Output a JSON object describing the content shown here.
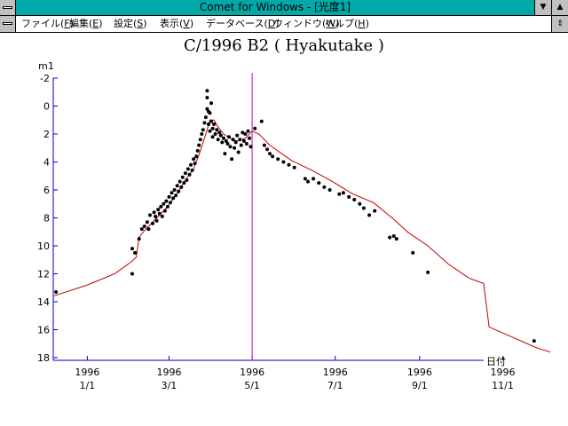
{
  "window": {
    "title": "Comet for Windows - [光度1]",
    "scroll_down_icon": "down-arrow-icon",
    "scroll_up_icon": "up-arrow-icon"
  },
  "menu": {
    "items": [
      {
        "label": "ファイル(",
        "key": "F",
        "suffix": ")"
      },
      {
        "label": "編集(",
        "key": "E",
        "suffix": ")"
      },
      {
        "label": "設定(",
        "key": "S",
        "suffix": ")"
      },
      {
        "label": "表示(",
        "key": "V",
        "suffix": ")"
      },
      {
        "label": "データベース(",
        "key": "D",
        "suffix": ")"
      },
      {
        "label": "ウィンドウ(",
        "key": "W",
        "suffix": ")"
      },
      {
        "label": "ヘルプ(",
        "key": "H",
        "suffix": ")"
      }
    ]
  },
  "chart_data": {
    "type": "scatter",
    "title": "C/1996 B2 ( Hyakutake )",
    "ylabel": "m1",
    "xlabel": "日付",
    "ylim": [
      -2,
      18
    ],
    "y_inverted": true,
    "y_ticks": [
      -2,
      0,
      2,
      4,
      6,
      8,
      10,
      12,
      14,
      16,
      18
    ],
    "x_range_days": [
      -25,
      291
    ],
    "x_ticks": [
      {
        "day": 0,
        "year": "1996",
        "date": "1/1"
      },
      {
        "day": 60,
        "year": "1996",
        "date": "3/1"
      },
      {
        "day": 121,
        "year": "1996",
        "date": "5/1"
      },
      {
        "day": 182,
        "year": "1996",
        "date": "7/1"
      },
      {
        "day": 244,
        "year": "1996",
        "date": "9/1"
      },
      {
        "day": 305,
        "year": "1996",
        "date": "11/1"
      }
    ],
    "marker_day": 121,
    "colors": {
      "axis": "#0000c0",
      "curve": "#c00000",
      "marker": "#c000c0",
      "points": "#000000"
    },
    "curve": [
      [
        -25,
        13.6
      ],
      [
        0,
        12.8
      ],
      [
        20,
        12.0
      ],
      [
        33,
        11.1
      ],
      [
        36,
        10.8
      ],
      [
        38,
        9.4
      ],
      [
        42,
        8.9
      ],
      [
        50,
        8.1
      ],
      [
        58,
        7.3
      ],
      [
        65,
        6.4
      ],
      [
        72,
        5.3
      ],
      [
        78,
        4.5
      ],
      [
        83,
        3.2
      ],
      [
        87,
        2.0
      ],
      [
        90,
        1.0
      ],
      [
        93,
        1.0
      ],
      [
        96,
        1.5
      ],
      [
        100,
        2.0
      ],
      [
        105,
        2.3
      ],
      [
        110,
        2.5
      ],
      [
        116,
        2.3
      ],
      [
        121,
        1.8
      ],
      [
        126,
        2.0
      ],
      [
        134,
        2.8
      ],
      [
        150,
        3.9
      ],
      [
        165,
        4.6
      ],
      [
        180,
        5.4
      ],
      [
        195,
        6.3
      ],
      [
        210,
        6.9
      ],
      [
        225,
        8.1
      ],
      [
        235,
        9.0
      ],
      [
        250,
        10.0
      ],
      [
        265,
        11.3
      ],
      [
        280,
        12.3
      ],
      [
        291,
        12.7
      ],
      [
        295,
        15.8
      ],
      [
        330,
        17.3
      ],
      [
        340,
        17.6
      ]
    ],
    "points": [
      [
        -23,
        13.3
      ],
      [
        33,
        12.0
      ],
      [
        33,
        10.2
      ],
      [
        35,
        10.5
      ],
      [
        38,
        9.5
      ],
      [
        40,
        8.8
      ],
      [
        42,
        8.6
      ],
      [
        44,
        8.3
      ],
      [
        45,
        8.8
      ],
      [
        46,
        7.8
      ],
      [
        48,
        8.4
      ],
      [
        49,
        7.6
      ],
      [
        50,
        7.9
      ],
      [
        51,
        8.2
      ],
      [
        52,
        7.4
      ],
      [
        53,
        7.7
      ],
      [
        54,
        7.2
      ],
      [
        55,
        7.9
      ],
      [
        56,
        7.0
      ],
      [
        57,
        7.5
      ],
      [
        58,
        6.8
      ],
      [
        59,
        7.2
      ],
      [
        60,
        6.5
      ],
      [
        61,
        6.9
      ],
      [
        62,
        6.2
      ],
      [
        63,
        6.6
      ],
      [
        64,
        6.0
      ],
      [
        65,
        6.4
      ],
      [
        66,
        5.7
      ],
      [
        67,
        6.1
      ],
      [
        68,
        5.4
      ],
      [
        69,
        5.8
      ],
      [
        70,
        5.1
      ],
      [
        71,
        5.5
      ],
      [
        72,
        4.8
      ],
      [
        73,
        5.3
      ],
      [
        74,
        4.5
      ],
      [
        75,
        4.9
      ],
      [
        76,
        4.2
      ],
      [
        77,
        4.6
      ],
      [
        78,
        3.8
      ],
      [
        79,
        4.1
      ],
      [
        80,
        3.6
      ],
      [
        81,
        3.2
      ],
      [
        82,
        2.8
      ],
      [
        83,
        2.4
      ],
      [
        84,
        2.0
      ],
      [
        85,
        1.7
      ],
      [
        86,
        1.2
      ],
      [
        87,
        0.8
      ],
      [
        88,
        0.2
      ],
      [
        88,
        -0.6
      ],
      [
        88,
        -1.1
      ],
      [
        89,
        0.4
      ],
      [
        89,
        1.3
      ],
      [
        90,
        1.8
      ],
      [
        90,
        0.5
      ],
      [
        91,
        1.1
      ],
      [
        91,
        -0.2
      ],
      [
        92,
        1.6
      ],
      [
        92,
        2.2
      ],
      [
        93,
        1.3
      ],
      [
        94,
        2.0
      ],
      [
        95,
        1.7
      ],
      [
        96,
        2.4
      ],
      [
        97,
        1.9
      ],
      [
        98,
        2.1
      ],
      [
        99,
        2.6
      ],
      [
        100,
        2.3
      ],
      [
        101,
        3.4
      ],
      [
        102,
        2.5
      ],
      [
        103,
        2.7
      ],
      [
        104,
        2.2
      ],
      [
        105,
        2.9
      ],
      [
        106,
        3.8
      ],
      [
        107,
        2.4
      ],
      [
        108,
        3.0
      ],
      [
        109,
        2.6
      ],
      [
        110,
        2.1
      ],
      [
        111,
        3.3
      ],
      [
        112,
        2.4
      ],
      [
        113,
        2.8
      ],
      [
        114,
        1.9
      ],
      [
        115,
        2.5
      ],
      [
        116,
        2.0
      ],
      [
        117,
        2.7
      ],
      [
        118,
        1.8
      ],
      [
        119,
        2.3
      ],
      [
        120,
        2.9
      ],
      [
        123,
        1.6
      ],
      [
        128,
        1.1
      ],
      [
        130,
        2.8
      ],
      [
        132,
        3.1
      ],
      [
        134,
        3.4
      ],
      [
        136,
        3.6
      ],
      [
        140,
        3.8
      ],
      [
        144,
        4.0
      ],
      [
        148,
        4.2
      ],
      [
        152,
        4.4
      ],
      [
        160,
        5.2
      ],
      [
        162,
        5.4
      ],
      [
        166,
        5.2
      ],
      [
        170,
        5.5
      ],
      [
        174,
        5.8
      ],
      [
        178,
        6.0
      ],
      [
        185,
        6.3
      ],
      [
        188,
        6.2
      ],
      [
        192,
        6.5
      ],
      [
        196,
        6.7
      ],
      [
        200,
        7.0
      ],
      [
        203,
        7.3
      ],
      [
        207,
        7.8
      ],
      [
        211,
        7.5
      ],
      [
        222,
        9.4
      ],
      [
        225,
        9.3
      ],
      [
        227,
        9.5
      ],
      [
        239,
        10.5
      ],
      [
        250,
        11.9
      ],
      [
        328,
        16.8
      ]
    ]
  }
}
